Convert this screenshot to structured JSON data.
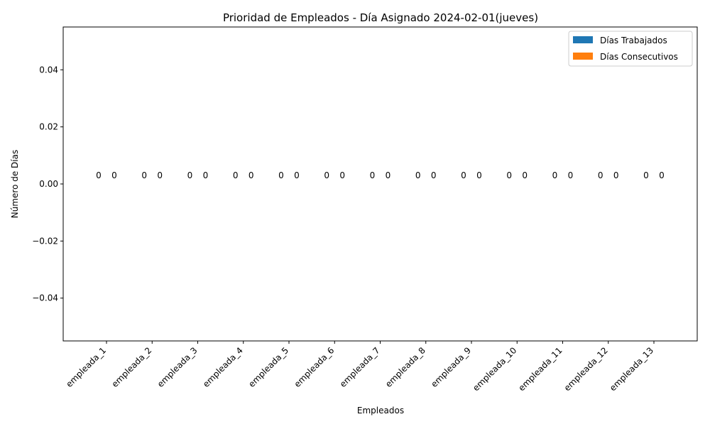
{
  "chart_data": {
    "type": "bar",
    "title": "Prioridad de Empleados - Día Asignado 2024-02-01(jueves)",
    "xlabel": "Empleados",
    "ylabel": "Número de Días",
    "categories": [
      "empleada_1",
      "empleada_2",
      "empleada_3",
      "empleada_4",
      "empleada_5",
      "empleada_6",
      "empleada_7",
      "empleada_8",
      "empleada_9",
      "empleada_10",
      "empleada_11",
      "empleada_12",
      "empleada_13"
    ],
    "series": [
      {
        "name": "Días Trabajados",
        "values": [
          0,
          0,
          0,
          0,
          0,
          0,
          0,
          0,
          0,
          0,
          0,
          0,
          0
        ],
        "color": "#1f77b4"
      },
      {
        "name": "Días Consecutivos",
        "values": [
          0,
          0,
          0,
          0,
          0,
          0,
          0,
          0,
          0,
          0,
          0,
          0,
          0
        ],
        "color": "#ff7f0e"
      }
    ],
    "ylim": [
      -0.055,
      0.055
    ],
    "yticks": [
      -0.04,
      -0.02,
      0.0,
      0.02,
      0.04
    ],
    "ytick_labels": [
      "−0.04",
      "−0.02",
      "0.00",
      "0.02",
      "0.04"
    ],
    "legend_position": "top-right",
    "grid": false
  }
}
